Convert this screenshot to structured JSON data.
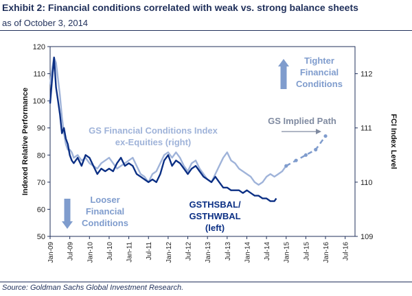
{
  "header": {
    "title": "Exhibit 2: Financial conditions correlated with weak vs. strong balance sheets",
    "subtitle": "as of October 3, 2014"
  },
  "footer": {
    "source": "Source: Goldman Sachs Global Investment Research."
  },
  "colors": {
    "dark_series": "#0b2f84",
    "light_series": "#9fb3d9",
    "arrow": "#7f9ccd",
    "path_arrow": "#7f8aa0",
    "text_navy": "#1f2f5a"
  },
  "chart_data": {
    "type": "line",
    "ylabel": "Indexed Relative Performance",
    "y2label": "FCI Index Level",
    "ylim": [
      50,
      120
    ],
    "yticks": [
      50,
      60,
      70,
      80,
      90,
      100,
      110,
      120
    ],
    "y2lim": [
      109,
      112.5
    ],
    "y2ticks": [
      109,
      110,
      111,
      112
    ],
    "xlim": [
      2009.0,
      2016.75
    ],
    "xticks": [
      {
        "x": 2009.0,
        "label": "Jan-09"
      },
      {
        "x": 2009.5,
        "label": "Jul-09"
      },
      {
        "x": 2010.0,
        "label": "Jan-10"
      },
      {
        "x": 2010.5,
        "label": "Jul-10"
      },
      {
        "x": 2011.0,
        "label": "Jan-11"
      },
      {
        "x": 2011.5,
        "label": "Jul-11"
      },
      {
        "x": 2012.0,
        "label": "Jan-12"
      },
      {
        "x": 2012.5,
        "label": "Jul-12"
      },
      {
        "x": 2013.0,
        "label": "Jan-13"
      },
      {
        "x": 2013.5,
        "label": "Jul-13"
      },
      {
        "x": 2014.0,
        "label": "Jan-14"
      },
      {
        "x": 2014.5,
        "label": "Jul-14"
      },
      {
        "x": 2015.0,
        "label": "Jan-15"
      },
      {
        "x": 2015.5,
        "label": "Jul-15"
      },
      {
        "x": 2016.0,
        "label": "Jan-16"
      },
      {
        "x": 2016.5,
        "label": "Jul-16"
      }
    ],
    "series": [
      {
        "name": "GSTHSBAL/ GSTHWBAL",
        "axis": "left",
        "x": [
          2009.0,
          2009.05,
          2009.1,
          2009.15,
          2009.2,
          2009.25,
          2009.3,
          2009.35,
          2009.4,
          2009.45,
          2009.5,
          2009.55,
          2009.6,
          2009.7,
          2009.8,
          2009.9,
          2010.0,
          2010.1,
          2010.2,
          2010.3,
          2010.4,
          2010.5,
          2010.6,
          2010.7,
          2010.8,
          2010.9,
          2011.0,
          2011.1,
          2011.2,
          2011.3,
          2011.4,
          2011.5,
          2011.6,
          2011.7,
          2011.8,
          2011.9,
          2012.0,
          2012.1,
          2012.2,
          2012.3,
          2012.4,
          2012.5,
          2012.6,
          2012.7,
          2012.8,
          2012.9,
          2013.0,
          2013.1,
          2013.2,
          2013.3,
          2013.4,
          2013.5,
          2013.6,
          2013.7,
          2013.8,
          2013.9,
          2014.0,
          2014.1,
          2014.2,
          2014.3,
          2014.4,
          2014.5,
          2014.6,
          2014.7,
          2014.75
        ],
        "values": [
          99,
          108,
          116,
          105,
          100,
          95,
          88,
          90,
          86,
          84,
          80,
          78,
          77,
          79,
          76,
          80,
          79,
          76,
          73,
          75,
          74,
          75,
          74,
          77,
          79,
          76,
          77,
          76,
          73,
          72,
          71,
          70,
          71,
          70,
          73,
          78,
          80,
          76,
          78,
          77,
          75,
          73,
          75,
          76,
          74,
          72,
          71,
          70,
          72,
          70,
          68,
          68,
          67,
          67,
          67,
          66,
          67,
          66,
          65,
          65,
          64,
          64,
          63,
          63,
          64
        ]
      },
      {
        "name": "GS Financial Conditions Index ex-Equities (right)",
        "axis": "right",
        "x": [
          2009.0,
          2009.05,
          2009.1,
          2009.15,
          2009.2,
          2009.25,
          2009.3,
          2009.35,
          2009.4,
          2009.45,
          2009.5,
          2009.55,
          2009.6,
          2009.7,
          2009.8,
          2009.9,
          2010.0,
          2010.1,
          2010.2,
          2010.3,
          2010.4,
          2010.5,
          2010.6,
          2010.7,
          2010.8,
          2010.9,
          2011.0,
          2011.1,
          2011.2,
          2011.3,
          2011.4,
          2011.5,
          2011.6,
          2011.7,
          2011.8,
          2011.9,
          2012.0,
          2012.1,
          2012.2,
          2012.3,
          2012.4,
          2012.5,
          2012.6,
          2012.7,
          2012.8,
          2012.9,
          2013.0,
          2013.1,
          2013.2,
          2013.3,
          2013.4,
          2013.5,
          2013.6,
          2013.7,
          2013.8,
          2013.9,
          2014.0,
          2014.1,
          2014.2,
          2014.3,
          2014.4,
          2014.5,
          2014.6,
          2014.7,
          2014.8,
          2014.9,
          2015.0
        ],
        "values": [
          111.8,
          112.1,
          112.3,
          112.2,
          111.9,
          111.6,
          111.2,
          110.9,
          110.7,
          110.6,
          110.6,
          110.55,
          110.45,
          110.5,
          110.4,
          110.45,
          110.35,
          110.3,
          110.25,
          110.35,
          110.4,
          110.45,
          110.35,
          110.25,
          110.3,
          110.35,
          110.4,
          110.45,
          110.3,
          110.15,
          110.1,
          110.0,
          110.15,
          110.2,
          110.35,
          110.5,
          110.55,
          110.45,
          110.55,
          110.45,
          110.3,
          110.2,
          110.35,
          110.4,
          110.25,
          110.15,
          110.05,
          110.0,
          110.15,
          110.3,
          110.45,
          110.55,
          110.4,
          110.35,
          110.25,
          110.2,
          110.15,
          110.1,
          110.0,
          109.95,
          110.0,
          110.1,
          110.15,
          110.1,
          110.15,
          110.2,
          110.3
        ]
      },
      {
        "name": "GS Implied Path",
        "axis": "right",
        "dashed": true,
        "x": [
          2015.0,
          2015.25,
          2015.5,
          2015.75,
          2016.0
        ],
        "values": [
          110.3,
          110.4,
          110.5,
          110.6,
          110.85
        ]
      }
    ],
    "annotations": {
      "fci_label_1": "GS Financial Conditions Index",
      "fci_label_2": "ex-Equities (right)",
      "gs_label_1": "GSTHSBAL/",
      "gs_label_2": "GSTHWBAL",
      "gs_label_3": "(left)",
      "implied_path": "GS Implied Path",
      "tighter_1": "Tighter",
      "tighter_2": "Financial",
      "tighter_3": "Conditions",
      "looser_1": "Looser",
      "looser_2": "Financial",
      "looser_3": "Conditions"
    }
  }
}
